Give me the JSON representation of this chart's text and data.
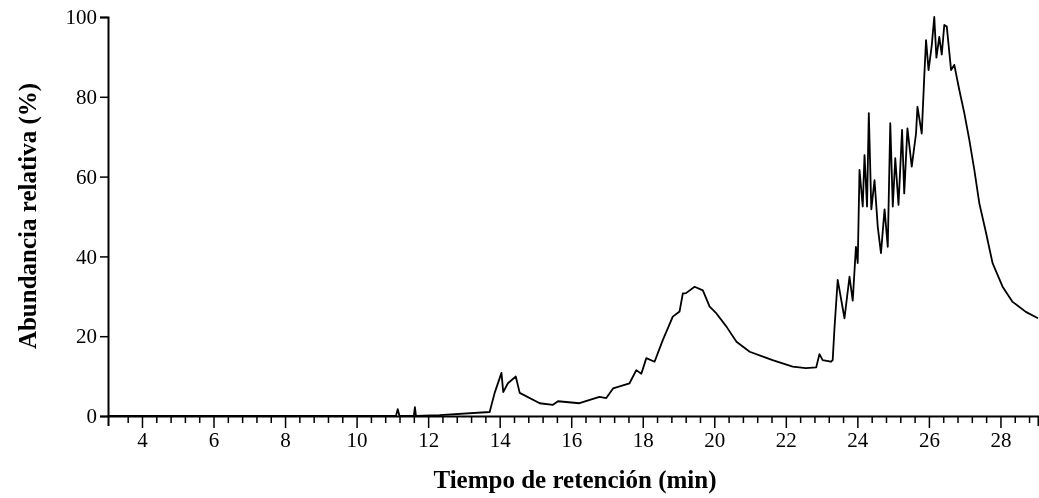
{
  "chart_data": {
    "type": "line",
    "xlabel": "Tiempo de retención (min)",
    "ylabel": "Abundancia relativa (%)",
    "xlim": [
      3.05,
      29.05
    ],
    "ylim": [
      0,
      100
    ],
    "xticks": [
      {
        "value": 3.6,
        "label": null
      },
      4,
      {
        "value": 4.4,
        "label": null
      },
      {
        "value": 4.8,
        "label": null
      },
      {
        "value": 5.2,
        "label": null
      },
      {
        "value": 5.6,
        "label": null
      },
      6,
      {
        "value": 6.4,
        "label": null
      },
      {
        "value": 6.8,
        "label": null
      },
      {
        "value": 7.2,
        "label": null
      },
      {
        "value": 7.6,
        "label": null
      },
      8,
      {
        "value": 8.4,
        "label": null
      },
      {
        "value": 8.8,
        "label": null
      },
      {
        "value": 9.2,
        "label": null
      },
      {
        "value": 9.6,
        "label": null
      },
      10,
      {
        "value": 10.4,
        "label": null
      },
      {
        "value": 10.8,
        "label": null
      },
      {
        "value": 11.2,
        "label": null
      },
      {
        "value": 11.6,
        "label": null
      },
      12,
      {
        "value": 12.4,
        "label": null
      },
      {
        "value": 12.8,
        "label": null
      },
      {
        "value": 13.2,
        "label": null
      },
      {
        "value": 13.6,
        "label": null
      },
      14,
      {
        "value": 14.4,
        "label": null
      },
      {
        "value": 14.8,
        "label": null
      },
      {
        "value": 15.2,
        "label": null
      },
      {
        "value": 15.6,
        "label": null
      },
      16,
      {
        "value": 16.4,
        "label": null
      },
      {
        "value": 16.8,
        "label": null
      },
      {
        "value": 17.2,
        "label": null
      },
      {
        "value": 17.6,
        "label": null
      },
      18,
      {
        "value": 18.4,
        "label": null
      },
      {
        "value": 18.8,
        "label": null
      },
      {
        "value": 19.2,
        "label": null
      },
      {
        "value": 19.6,
        "label": null
      },
      20,
      {
        "value": 20.4,
        "label": null
      },
      {
        "value": 20.8,
        "label": null
      },
      {
        "value": 21.2,
        "label": null
      },
      {
        "value": 21.6,
        "label": null
      },
      22,
      {
        "value": 22.4,
        "label": null
      },
      {
        "value": 22.8,
        "label": null
      },
      {
        "value": 23.2,
        "label": null
      },
      {
        "value": 23.6,
        "label": null
      },
      24,
      {
        "value": 24.4,
        "label": null
      },
      {
        "value": 24.8,
        "label": null
      },
      {
        "value": 25.2,
        "label": null
      },
      {
        "value": 25.6,
        "label": null
      },
      26,
      {
        "value": 26.4,
        "label": null
      },
      {
        "value": 26.8,
        "label": null
      },
      {
        "value": 27.2,
        "label": null
      },
      {
        "value": 27.6,
        "label": null
      },
      28,
      {
        "value": 28.4,
        "label": null
      },
      {
        "value": 28.8,
        "label": null
      }
    ],
    "yticks": [
      0,
      20,
      40,
      60,
      80,
      100
    ],
    "series": [
      {
        "color": "#000000",
        "x": [
          3.05,
          11.1,
          11.15,
          11.2,
          11.6,
          11.63,
          11.66,
          12.32,
          13.72,
          13.86,
          14.05,
          14.1,
          14.23,
          14.45,
          14.56,
          15.12,
          15.49,
          15.63,
          16.23,
          16.79,
          16.98,
          17.17,
          17.63,
          17.82,
          17.96,
          18.1,
          18.33,
          18.56,
          18.84,
          19.03,
          19.12,
          19.21,
          19.45,
          19.68,
          19.87,
          20.06,
          20.34,
          20.62,
          20.99,
          21.63,
          22.19,
          22.56,
          22.85,
          22.94,
          23.03,
          23.26,
          23.31,
          23.36,
          23.45,
          23.64,
          23.78,
          23.87,
          23.96,
          24.01,
          24.06,
          24.15,
          24.2,
          24.27,
          24.32,
          24.39,
          24.48,
          24.57,
          24.66,
          24.76,
          24.85,
          24.92,
          24.99,
          25.06,
          25.15,
          25.25,
          25.31,
          25.4,
          25.52,
          25.64,
          25.68,
          25.8,
          25.87,
          25.92,
          25.99,
          26.08,
          26.15,
          26.21,
          26.29,
          26.36,
          26.43,
          26.5,
          26.62,
          26.71,
          26.85,
          26.99,
          27.13,
          27.27,
          27.41,
          27.6,
          27.78,
          28.06,
          28.34,
          28.71,
          29.05
        ],
        "values": [
          0,
          0,
          1.7,
          0,
          0,
          2.2,
          0,
          0.2,
          1,
          5.8,
          10.8,
          6,
          8.2,
          9.9,
          5.8,
          3.2,
          2.8,
          3.7,
          3.2,
          4.8,
          4.5,
          6.9,
          8.2,
          11.5,
          10.6,
          14.5,
          13.6,
          19,
          24.9,
          26.2,
          30.7,
          30.8,
          32.4,
          31.5,
          27.4,
          25.7,
          22.4,
          18.6,
          16.1,
          14,
          12.4,
          12,
          12.2,
          15.5,
          14,
          13.6,
          14,
          22,
          34.1,
          24.5,
          34.9,
          28.9,
          42.4,
          38.3,
          61.7,
          52.5,
          65.4,
          52.5,
          75.9,
          51.8,
          59.1,
          47.4,
          40.8,
          51.8,
          42.4,
          73.4,
          52.5,
          64.6,
          52.9,
          71.7,
          55.8,
          72.1,
          62.5,
          70.8,
          77.5,
          70.8,
          85,
          94.2,
          86.7,
          92.9,
          100,
          89.8,
          95,
          90.6,
          98,
          97.6,
          86.7,
          88,
          81.7,
          75.9,
          69.2,
          61.7,
          53.3,
          45.8,
          38.3,
          32.4,
          28.6,
          26.1,
          24.5
        ]
      }
    ]
  }
}
